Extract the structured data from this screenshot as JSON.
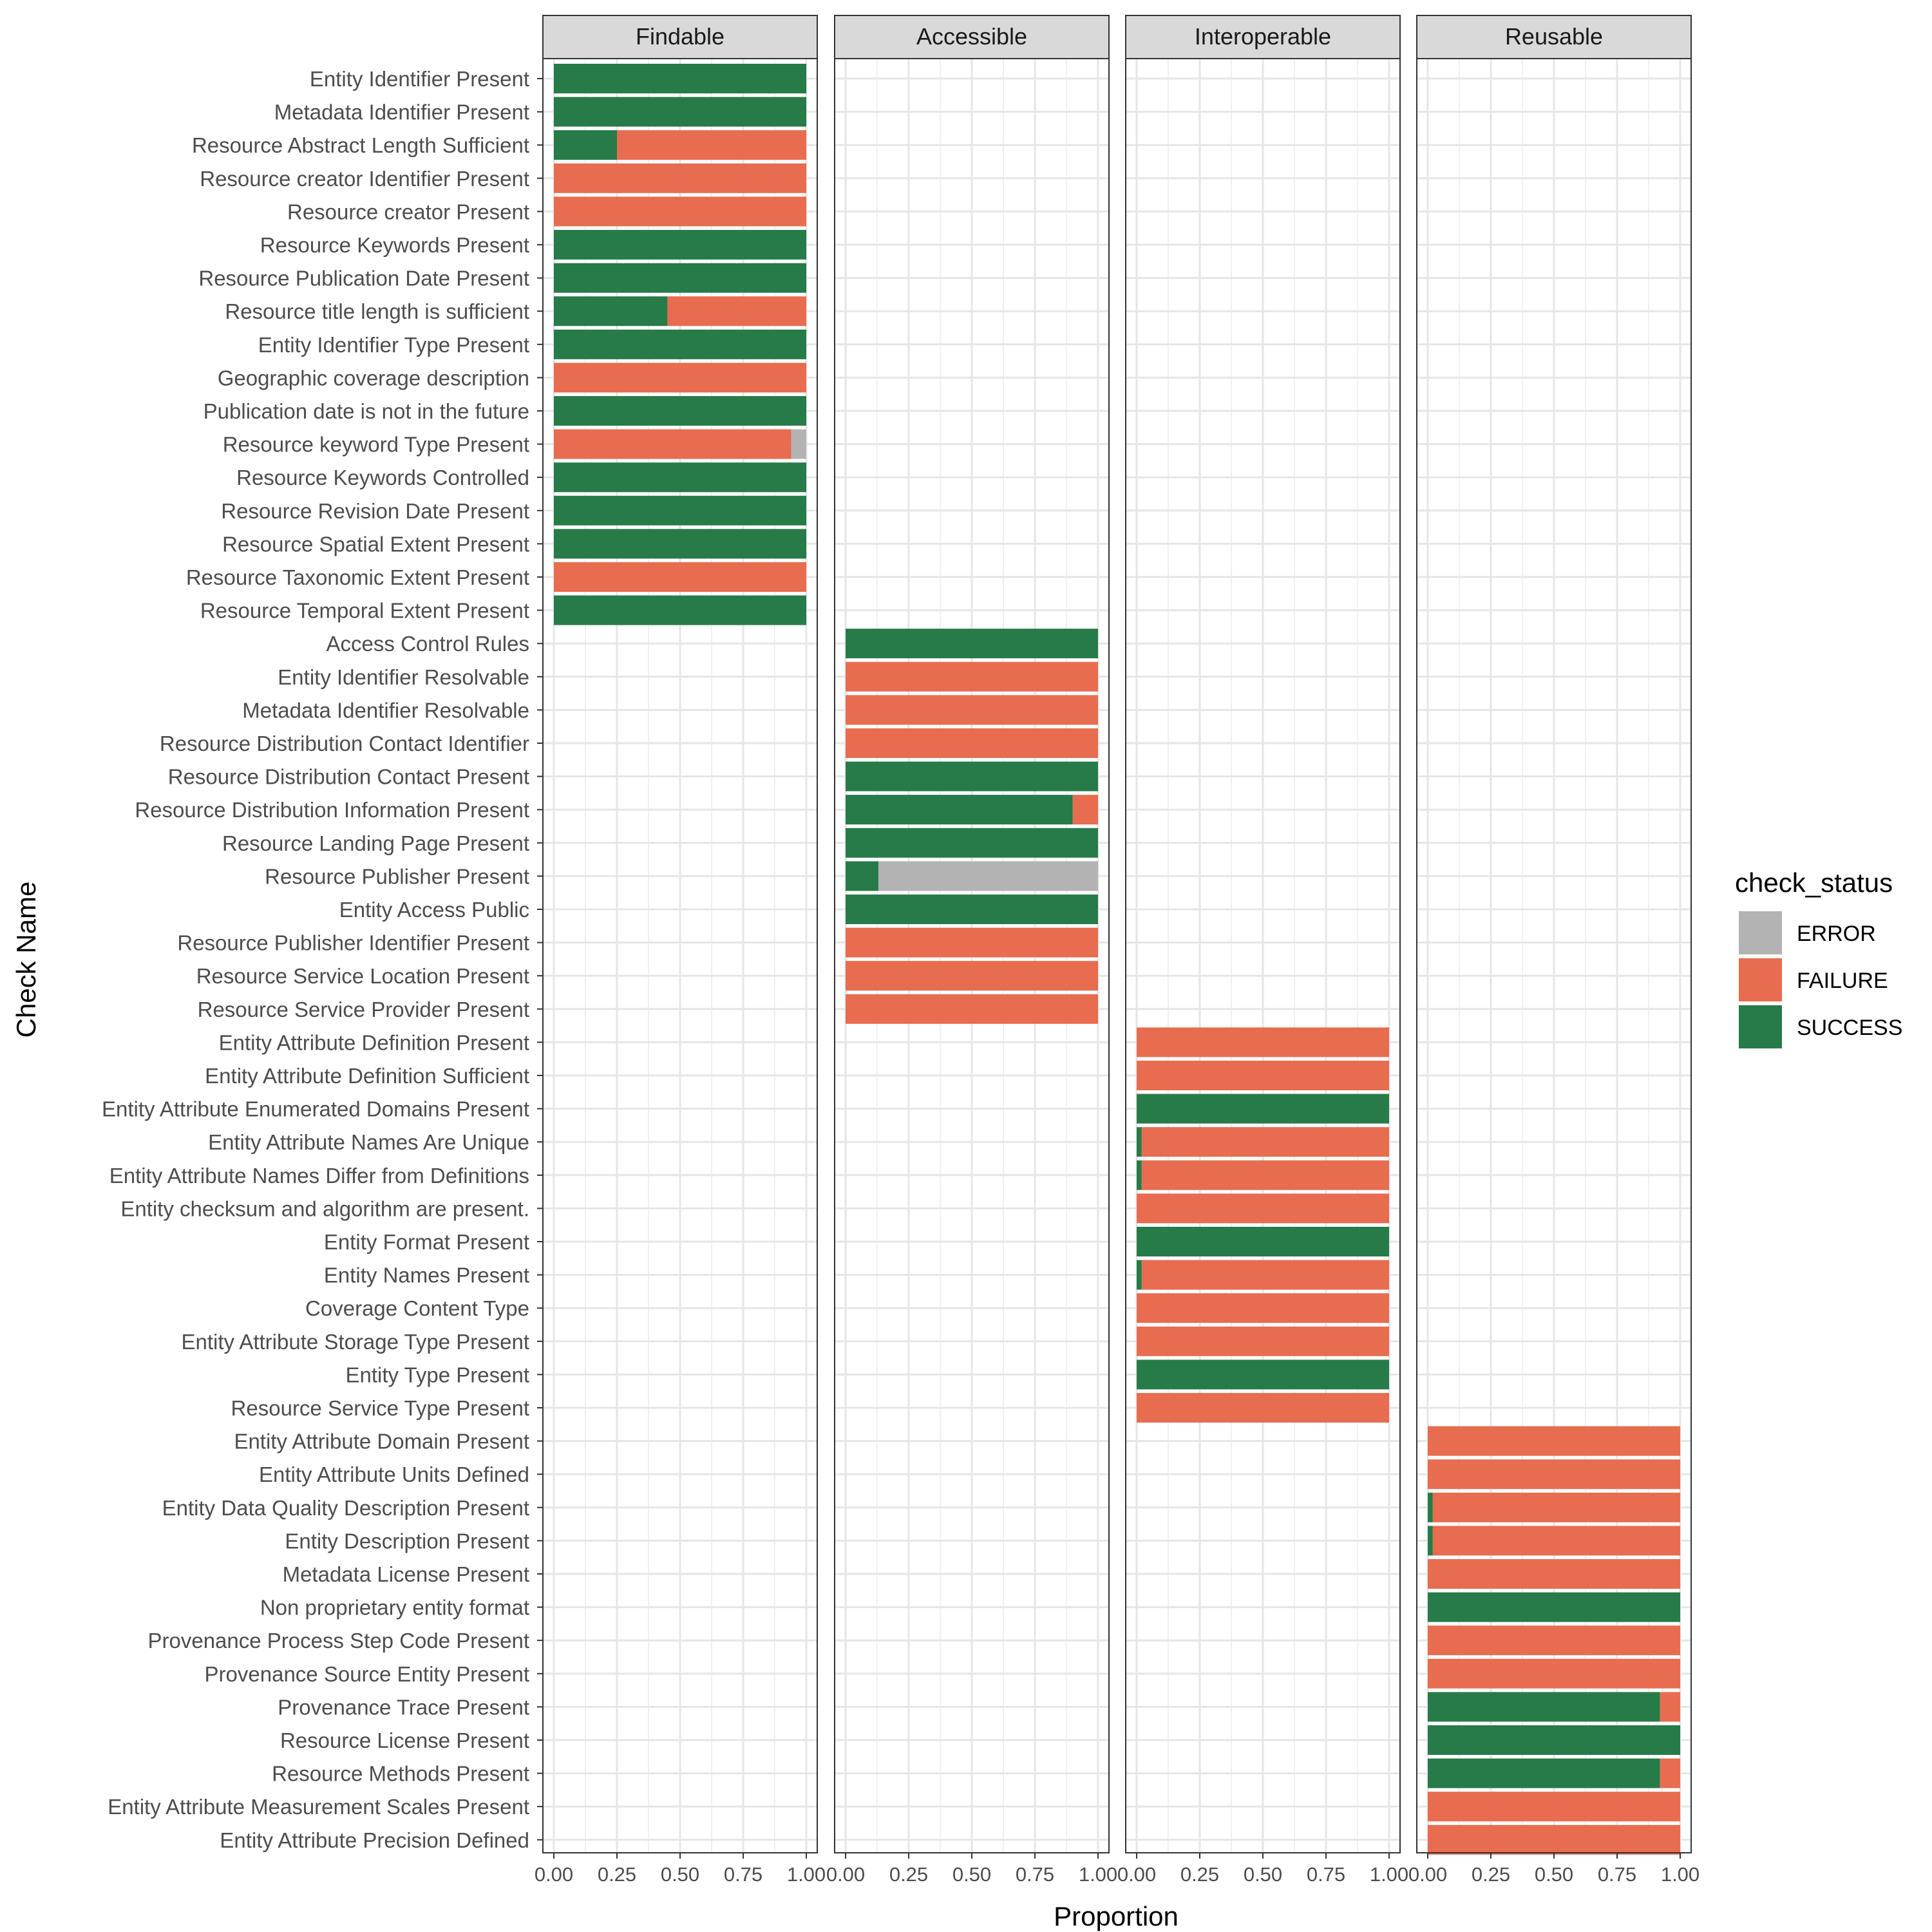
{
  "chart_data": {
    "type": "bar",
    "orientation": "horizontal",
    "stacked": true,
    "title": "",
    "xlabel": "Proportion",
    "ylabel": "Check Name",
    "xlim": [
      0,
      1
    ],
    "x_ticks": [
      "0.00",
      "0.25",
      "0.50",
      "0.75",
      "1.00"
    ],
    "x_tick_values": [
      0,
      0.25,
      0.5,
      0.75,
      1
    ],
    "grid": true,
    "legend": {
      "title": "check_status",
      "placement": "right",
      "entries": [
        {
          "name": "ERROR",
          "color": "#B3B3B3"
        },
        {
          "name": "FAILURE",
          "color": "#E86C50"
        },
        {
          "name": "SUCCESS",
          "color": "#277B48"
        }
      ]
    },
    "stack_order": [
      "SUCCESS",
      "FAILURE",
      "ERROR"
    ],
    "facets": [
      {
        "label": "Findable",
        "rows": [
          {
            "name": "Entity Identifier Present",
            "SUCCESS": 1.0,
            "FAILURE": 0.0,
            "ERROR": 0.0
          },
          {
            "name": "Metadata Identifier Present",
            "SUCCESS": 1.0,
            "FAILURE": 0.0,
            "ERROR": 0.0
          },
          {
            "name": "Resource Abstract Length Sufficient",
            "SUCCESS": 0.25,
            "FAILURE": 0.75,
            "ERROR": 0.0
          },
          {
            "name": "Resource creator Identifier Present",
            "SUCCESS": 0.0,
            "FAILURE": 1.0,
            "ERROR": 0.0
          },
          {
            "name": "Resource creator Present",
            "SUCCESS": 0.0,
            "FAILURE": 1.0,
            "ERROR": 0.0
          },
          {
            "name": "Resource Keywords Present",
            "SUCCESS": 1.0,
            "FAILURE": 0.0,
            "ERROR": 0.0
          },
          {
            "name": "Resource Publication Date Present",
            "SUCCESS": 1.0,
            "FAILURE": 0.0,
            "ERROR": 0.0
          },
          {
            "name": "Resource title length is sufficient",
            "SUCCESS": 0.45,
            "FAILURE": 0.55,
            "ERROR": 0.0
          },
          {
            "name": "Entity Identifier Type Present",
            "SUCCESS": 1.0,
            "FAILURE": 0.0,
            "ERROR": 0.0
          },
          {
            "name": "Geographic coverage description",
            "SUCCESS": 0.0,
            "FAILURE": 1.0,
            "ERROR": 0.0
          },
          {
            "name": "Publication date is not in the future",
            "SUCCESS": 1.0,
            "FAILURE": 0.0,
            "ERROR": 0.0
          },
          {
            "name": "Resource keyword Type Present",
            "SUCCESS": 0.0,
            "FAILURE": 0.94,
            "ERROR": 0.06
          },
          {
            "name": "Resource Keywords Controlled",
            "SUCCESS": 1.0,
            "FAILURE": 0.0,
            "ERROR": 0.0
          },
          {
            "name": "Resource Revision Date Present",
            "SUCCESS": 1.0,
            "FAILURE": 0.0,
            "ERROR": 0.0
          },
          {
            "name": "Resource Spatial Extent Present",
            "SUCCESS": 1.0,
            "FAILURE": 0.0,
            "ERROR": 0.0
          },
          {
            "name": "Resource Taxonomic Extent Present",
            "SUCCESS": 0.0,
            "FAILURE": 1.0,
            "ERROR": 0.0
          },
          {
            "name": "Resource Temporal Extent Present",
            "SUCCESS": 1.0,
            "FAILURE": 0.0,
            "ERROR": 0.0
          }
        ]
      },
      {
        "label": "Accessible",
        "rows": [
          {
            "name": "Access Control Rules",
            "SUCCESS": 1.0,
            "FAILURE": 0.0,
            "ERROR": 0.0
          },
          {
            "name": "Entity Identifier Resolvable",
            "SUCCESS": 0.0,
            "FAILURE": 1.0,
            "ERROR": 0.0
          },
          {
            "name": "Metadata Identifier Resolvable",
            "SUCCESS": 0.0,
            "FAILURE": 1.0,
            "ERROR": 0.0
          },
          {
            "name": "Resource Distribution Contact Identifier",
            "SUCCESS": 0.0,
            "FAILURE": 1.0,
            "ERROR": 0.0
          },
          {
            "name": "Resource Distribution Contact Present",
            "SUCCESS": 1.0,
            "FAILURE": 0.0,
            "ERROR": 0.0
          },
          {
            "name": "Resource Distribution Information Present",
            "SUCCESS": 0.9,
            "FAILURE": 0.1,
            "ERROR": 0.0
          },
          {
            "name": "Resource Landing Page Present",
            "SUCCESS": 1.0,
            "FAILURE": 0.0,
            "ERROR": 0.0
          },
          {
            "name": "Resource Publisher Present",
            "SUCCESS": 0.13,
            "FAILURE": 0.0,
            "ERROR": 0.87
          },
          {
            "name": "Entity Access Public",
            "SUCCESS": 1.0,
            "FAILURE": 0.0,
            "ERROR": 0.0
          },
          {
            "name": "Resource Publisher Identifier Present",
            "SUCCESS": 0.0,
            "FAILURE": 1.0,
            "ERROR": 0.0
          },
          {
            "name": "Resource Service Location Present",
            "SUCCESS": 0.0,
            "FAILURE": 1.0,
            "ERROR": 0.0
          },
          {
            "name": "Resource Service Provider Present",
            "SUCCESS": 0.0,
            "FAILURE": 1.0,
            "ERROR": 0.0
          }
        ]
      },
      {
        "label": "Interoperable",
        "rows": [
          {
            "name": "Entity Attribute Definition Present",
            "SUCCESS": 0.0,
            "FAILURE": 1.0,
            "ERROR": 0.0
          },
          {
            "name": "Entity Attribute Definition Sufficient",
            "SUCCESS": 0.0,
            "FAILURE": 1.0,
            "ERROR": 0.0
          },
          {
            "name": "Entity Attribute Enumerated Domains Present",
            "SUCCESS": 1.0,
            "FAILURE": 0.0,
            "ERROR": 0.0
          },
          {
            "name": "Entity Attribute Names Are Unique",
            "SUCCESS": 0.02,
            "FAILURE": 0.98,
            "ERROR": 0.0
          },
          {
            "name": "Entity Attribute Names Differ from Definitions",
            "SUCCESS": 0.02,
            "FAILURE": 0.98,
            "ERROR": 0.0
          },
          {
            "name": "Entity checksum and algorithm are present.",
            "SUCCESS": 0.0,
            "FAILURE": 1.0,
            "ERROR": 0.0
          },
          {
            "name": "Entity Format Present",
            "SUCCESS": 1.0,
            "FAILURE": 0.0,
            "ERROR": 0.0
          },
          {
            "name": "Entity Names Present",
            "SUCCESS": 0.02,
            "FAILURE": 0.98,
            "ERROR": 0.0
          },
          {
            "name": "Coverage Content Type",
            "SUCCESS": 0.0,
            "FAILURE": 1.0,
            "ERROR": 0.0
          },
          {
            "name": "Entity Attribute Storage Type Present",
            "SUCCESS": 0.0,
            "FAILURE": 1.0,
            "ERROR": 0.0
          },
          {
            "name": "Entity Type Present",
            "SUCCESS": 1.0,
            "FAILURE": 0.0,
            "ERROR": 0.0
          },
          {
            "name": "Resource Service Type Present",
            "SUCCESS": 0.0,
            "FAILURE": 1.0,
            "ERROR": 0.0
          }
        ]
      },
      {
        "label": "Reusable",
        "rows": [
          {
            "name": "Entity Attribute Domain Present",
            "SUCCESS": 0.0,
            "FAILURE": 1.0,
            "ERROR": 0.0
          },
          {
            "name": "Entity Attribute Units Defined",
            "SUCCESS": 0.0,
            "FAILURE": 1.0,
            "ERROR": 0.0
          },
          {
            "name": "Entity Data Quality Description Present",
            "SUCCESS": 0.02,
            "FAILURE": 0.98,
            "ERROR": 0.0
          },
          {
            "name": "Entity Description Present",
            "SUCCESS": 0.02,
            "FAILURE": 0.98,
            "ERROR": 0.0
          },
          {
            "name": "Metadata License Present",
            "SUCCESS": 0.0,
            "FAILURE": 1.0,
            "ERROR": 0.0
          },
          {
            "name": "Non proprietary entity format",
            "SUCCESS": 1.0,
            "FAILURE": 0.0,
            "ERROR": 0.0
          },
          {
            "name": "Provenance Process Step Code Present",
            "SUCCESS": 0.0,
            "FAILURE": 1.0,
            "ERROR": 0.0
          },
          {
            "name": "Provenance Source Entity Present",
            "SUCCESS": 0.0,
            "FAILURE": 1.0,
            "ERROR": 0.0
          },
          {
            "name": "Provenance Trace Present",
            "SUCCESS": 0.92,
            "FAILURE": 0.08,
            "ERROR": 0.0
          },
          {
            "name": "Resource License Present",
            "SUCCESS": 1.0,
            "FAILURE": 0.0,
            "ERROR": 0.0
          },
          {
            "name": "Resource Methods Present",
            "SUCCESS": 0.92,
            "FAILURE": 0.08,
            "ERROR": 0.0
          },
          {
            "name": "Entity Attribute Measurement Scales Present",
            "SUCCESS": 0.0,
            "FAILURE": 1.0,
            "ERROR": 0.0
          },
          {
            "name": "Entity Attribute Precision Defined",
            "SUCCESS": 0.0,
            "FAILURE": 1.0,
            "ERROR": 0.0
          }
        ]
      }
    ]
  }
}
